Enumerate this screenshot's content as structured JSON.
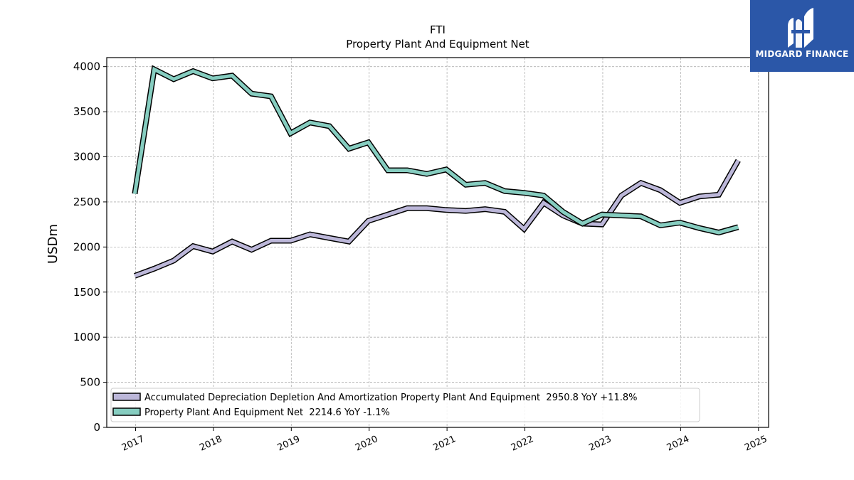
{
  "logo": {
    "text": "MIDGARD FINANCE",
    "background": "#2b57a8"
  },
  "chart_data": {
    "type": "line",
    "title": "FTI",
    "subtitle": "Property Plant And Equipment Net",
    "ylabel": "USDm",
    "xlabel": "",
    "ylim": [
      0,
      4100
    ],
    "yticks": [
      0,
      500,
      1000,
      1500,
      2000,
      2500,
      3000,
      3500,
      4000
    ],
    "xlim": [
      2016.63,
      2025.13
    ],
    "xticks": [
      2017,
      2018,
      2019,
      2020,
      2021,
      2022,
      2023,
      2024,
      2025
    ],
    "grid": true,
    "legend_position": "lower-left",
    "x": [
      2016.99,
      2017.24,
      2017.49,
      2017.74,
      2017.99,
      2018.24,
      2018.49,
      2018.74,
      2018.99,
      2019.24,
      2019.49,
      2019.74,
      2019.99,
      2020.24,
      2020.49,
      2020.74,
      2020.99,
      2021.24,
      2021.49,
      2021.74,
      2021.99,
      2022.24,
      2022.49,
      2022.74,
      2022.99,
      2023.24,
      2023.49,
      2023.74,
      2023.99,
      2024.24,
      2024.49,
      2024.74
    ],
    "series": [
      {
        "name": "Accumulated Depreciation Depletion And Amortization Property Plant And Equipment",
        "legend_label": "Accumulated Depreciation Depletion And Amortization Property Plant And Equipment  2950.8 YoY +11.8%",
        "color": "#bcb7d9",
        "values": [
          1680,
          1760,
          1850,
          2010,
          1950,
          2060,
          1970,
          2070,
          2070,
          2140,
          2100,
          2060,
          2290,
          2360,
          2430,
          2430,
          2410,
          2400,
          2420,
          2390,
          2200,
          2490,
          2350,
          2260,
          2250,
          2570,
          2710,
          2630,
          2490,
          2560,
          2580,
          2960
        ]
      },
      {
        "name": "Property Plant And Equipment Net",
        "legend_label": "Property Plant And Equipment Net  2214.6 YoY -1.1%",
        "color": "#86cdc0",
        "values": [
          2590,
          3970,
          3860,
          3950,
          3870,
          3900,
          3700,
          3670,
          3260,
          3380,
          3340,
          3090,
          3160,
          2850,
          2850,
          2810,
          2860,
          2690,
          2710,
          2620,
          2600,
          2570,
          2390,
          2260,
          2360,
          2350,
          2340,
          2240,
          2270,
          2210,
          2160,
          2220
        ]
      }
    ]
  }
}
